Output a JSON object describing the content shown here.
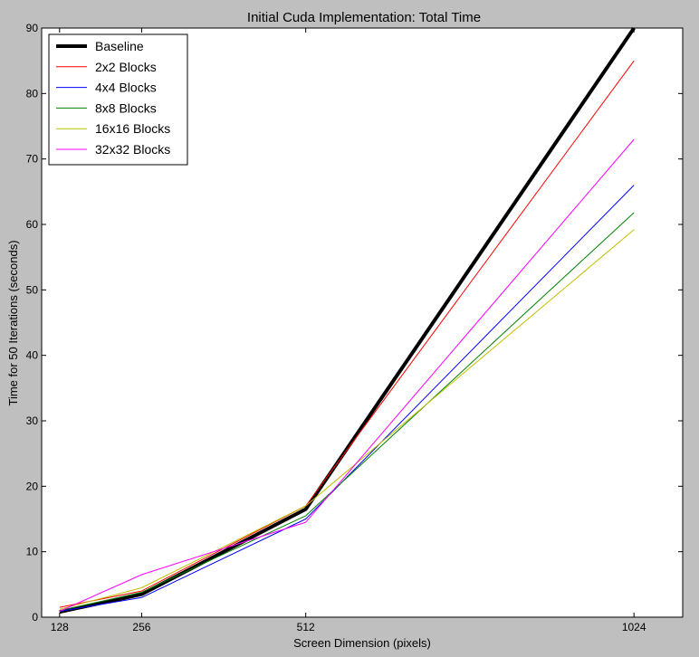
{
  "chart_data": {
    "type": "line",
    "title": "Initial Cuda Implementation: Total Time",
    "xlabel": "Screen Dimension (pixels)",
    "ylabel": "Time for 50 Iterations (seconds)",
    "x": [
      128,
      256,
      512,
      1024
    ],
    "xlim": [
      100,
      1100
    ],
    "ylim": [
      0,
      90
    ],
    "xticks": [
      128,
      256,
      512,
      1024
    ],
    "yticks": [
      0,
      10,
      20,
      30,
      40,
      50,
      60,
      70,
      80,
      90
    ],
    "grid": false,
    "legend_position": "top-left",
    "series": [
      {
        "name": "Baseline",
        "color": "#000000",
        "width": 4,
        "values": [
          0.8,
          3.5,
          16.5,
          90
        ]
      },
      {
        "name": "2x2 Blocks",
        "color": "#ff0000",
        "width": 1,
        "values": [
          1.5,
          4.0,
          17.0,
          85.0
        ]
      },
      {
        "name": "4x4 Blocks",
        "color": "#0000ff",
        "width": 1,
        "values": [
          0.9,
          3.0,
          15.0,
          66.0
        ]
      },
      {
        "name": "8x8 Blocks",
        "color": "#008000",
        "width": 1,
        "values": [
          1.0,
          3.8,
          15.5,
          61.8
        ]
      },
      {
        "name": "16x16 Blocks",
        "color": "#bfbf00",
        "width": 1,
        "values": [
          1.2,
          4.5,
          17.0,
          59.2
        ]
      },
      {
        "name": "32x32 Blocks",
        "color": "#ff00ff",
        "width": 1,
        "values": [
          0.9,
          6.5,
          14.5,
          73.0
        ]
      }
    ]
  }
}
